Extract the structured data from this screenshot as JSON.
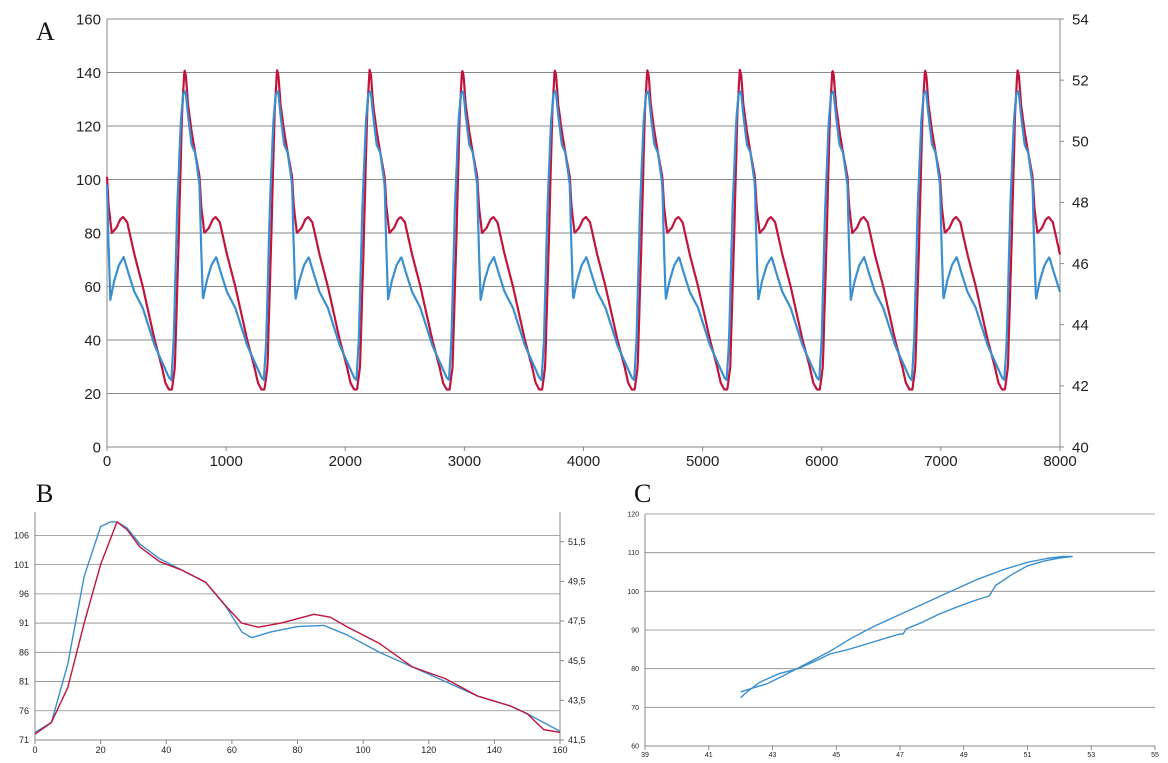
{
  "colors": {
    "red": "#c0143c",
    "blue": "#3a8fd0",
    "grid": "#8a8a8a",
    "axis": "#8a8a8a"
  },
  "chart_data": [
    {
      "panel": "A",
      "type": "line",
      "xlim": [
        0,
        8000
      ],
      "xticks": [
        "0",
        "1000",
        "2000",
        "3000",
        "4000",
        "5000",
        "6000",
        "7000",
        "8000"
      ],
      "ylim_left": [
        0,
        160
      ],
      "yticks_left": [
        "0",
        "20",
        "40",
        "60",
        "80",
        "100",
        "120",
        "140",
        "160"
      ],
      "ylim_right": [
        40,
        54
      ],
      "yticks_right": [
        "40",
        "42",
        "44",
        "46",
        "48",
        "50",
        "52",
        "54"
      ],
      "grid": "horizontal",
      "period": 777,
      "series": [
        {
          "color": "red",
          "axis": "left",
          "cycle_x": [
            0,
            14,
            40,
            80,
            110,
            135,
            170,
            230,
            300,
            400,
            460,
            490,
            520,
            545,
            570,
            600,
            630,
            650,
            662,
            680,
            710,
            740,
            777
          ],
          "cycle_y": [
            101,
            90,
            80,
            82,
            85,
            86,
            84,
            72,
            60,
            40,
            30,
            24,
            21.5,
            21.5,
            30,
            75,
            125,
            141,
            139,
            128,
            118,
            110,
            101
          ]
        },
        {
          "color": "blue",
          "axis": "left",
          "cycle_x": [
            0,
            10,
            28,
            60,
            100,
            140,
            180,
            230,
            300,
            400,
            460,
            500,
            520,
            540,
            560,
            590,
            620,
            640,
            660,
            680,
            710,
            740,
            777
          ],
          "cycle_y": [
            98,
            80,
            55,
            62,
            68,
            71,
            65,
            58,
            52,
            38,
            32,
            28,
            26,
            25,
            40,
            90,
            122,
            132,
            133,
            124,
            113,
            110,
            98
          ]
        }
      ]
    },
    {
      "panel": "B",
      "type": "line",
      "xlim": [
        0,
        160
      ],
      "xticks": [
        "0",
        "20",
        "40",
        "60",
        "80",
        "100",
        "120",
        "140",
        "160"
      ],
      "ylim_left": [
        71,
        110
      ],
      "yticks_left": [
        "71",
        "76",
        "81",
        "86",
        "91",
        "96",
        "101",
        "106"
      ],
      "ylim_right": [
        41.5,
        53
      ],
      "yticks_right": [
        "41,5",
        "43,5",
        "45,5",
        "47,5",
        "49,5",
        "51,5"
      ],
      "grid": "horizontal",
      "series": [
        {
          "color": "blue",
          "x": [
            0,
            5,
            10,
            15,
            20,
            23,
            25,
            28,
            32,
            38,
            45,
            52,
            58,
            63,
            66,
            72,
            80,
            88,
            95,
            105,
            115,
            125,
            135,
            145,
            150,
            155,
            160
          ],
          "y": [
            72.3,
            74,
            84,
            99,
            107.5,
            108.3,
            108.3,
            107.3,
            104.5,
            102,
            100,
            98,
            94,
            89.5,
            88.5,
            89.5,
            90.4,
            90.6,
            89,
            86,
            83.5,
            81,
            78.5,
            76.8,
            75.5,
            74,
            72.5
          ]
        },
        {
          "color": "red",
          "x": [
            0,
            5,
            10,
            15,
            20,
            25,
            28,
            32,
            38,
            45,
            52,
            58,
            63,
            68,
            75,
            85,
            90,
            95,
            105,
            115,
            125,
            135,
            145,
            150,
            155,
            160
          ],
          "y": [
            72,
            74,
            80,
            91,
            101,
            108.3,
            107,
            104,
            101.5,
            100,
            98,
            94,
            91,
            90.3,
            91,
            92.5,
            92,
            90.4,
            87.5,
            83.5,
            81.5,
            78.5,
            76.8,
            75.5,
            72.8,
            72.3
          ]
        }
      ]
    },
    {
      "panel": "C",
      "type": "scatter",
      "xlim": [
        39,
        55
      ],
      "xticks": [
        "39",
        "41",
        "43",
        "45",
        "47",
        "49",
        "51",
        "53",
        "55"
      ],
      "ylim": [
        60,
        120
      ],
      "yticks": [
        "60",
        "70",
        "80",
        "90",
        "100",
        "110",
        "120"
      ],
      "grid": "horizontal",
      "series": [
        {
          "color": "blue",
          "x": [
            42,
            42.3,
            42.8,
            43.3,
            44,
            44.8,
            45.5,
            46.2,
            47,
            47.8,
            48.6,
            49.4,
            50.2,
            51,
            51.6,
            52.1,
            52.4,
            52,
            51.5,
            51,
            50.5,
            50,
            49.8,
            49.3,
            48.8,
            48.2,
            47.7,
            47.2,
            47.1,
            47,
            46.6,
            46,
            45.4,
            44.8,
            44.4,
            43.8,
            43.2,
            42.6,
            42.2,
            42
          ],
          "y": [
            74,
            74.8,
            76,
            78,
            81,
            84.5,
            88,
            91,
            94,
            97,
            100,
            103,
            105.5,
            107.5,
            108.5,
            109,
            109,
            108.6,
            107.8,
            106.6,
            104.3,
            101.5,
            98.8,
            97.5,
            96,
            94,
            92,
            90.3,
            89,
            89,
            88,
            86.5,
            85,
            83.8,
            82.2,
            80,
            78.7,
            76.5,
            74,
            72.5
          ]
        }
      ]
    }
  ],
  "labels": {
    "panel_a": "A",
    "panel_b": "B",
    "panel_c": "C"
  }
}
